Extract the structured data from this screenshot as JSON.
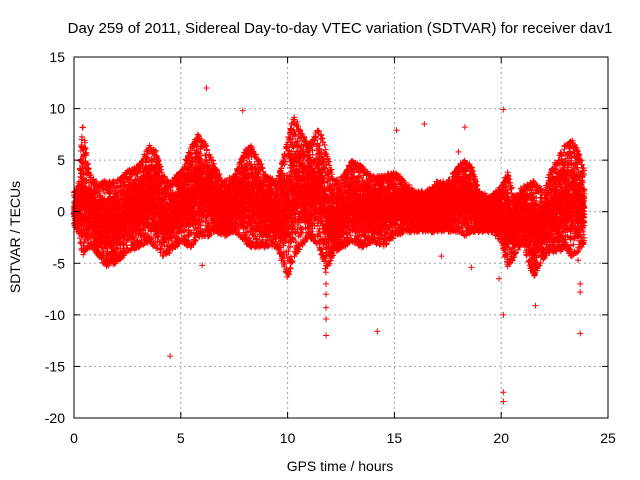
{
  "chart_data": {
    "type": "scatter",
    "title": "Day 259 of 2011, Sidereal Day-to-day VTEC variation (SDTVAR) for receiver dav1",
    "xlabel": "GPS time / hours",
    "ylabel": "SDTVAR / TECUs",
    "xlim": [
      0,
      25
    ],
    "ylim": [
      -20,
      15
    ],
    "xticks": [
      0,
      5,
      10,
      15,
      20,
      25
    ],
    "yticks": [
      -20,
      -15,
      -10,
      -5,
      0,
      5,
      10,
      15
    ],
    "xtick_labels": [
      "0",
      "5",
      "10",
      "15",
      "20",
      "25"
    ],
    "ytick_labels": [
      "-20",
      "-15",
      "-10",
      "-5",
      "0",
      "5",
      "10",
      "15"
    ],
    "grid": true,
    "marker": "+",
    "color": "#ff0000",
    "series": [
      {
        "name": "SDTVAR",
        "envelope": {
          "x": [
            0.0,
            0.2,
            0.3,
            0.4,
            0.5,
            0.7,
            1.0,
            1.5,
            2.0,
            2.5,
            3.0,
            3.5,
            3.8,
            4.2,
            4.5,
            5.0,
            5.5,
            5.8,
            6.2,
            6.6,
            7.0,
            7.5,
            8.0,
            8.3,
            8.7,
            9.0,
            9.5,
            10.0,
            10.3,
            10.6,
            11.0,
            11.5,
            11.8,
            12.2,
            12.6,
            13.0,
            13.5,
            14.0,
            14.5,
            15.0,
            15.5,
            16.0,
            16.5,
            17.0,
            17.5,
            18.0,
            18.3,
            18.6,
            19.0,
            19.5,
            20.0,
            20.3,
            20.6,
            21.0,
            21.5,
            22.0,
            22.3,
            22.7,
            23.0,
            23.3,
            23.6,
            23.9
          ],
          "upper": [
            2.0,
            2.5,
            5.0,
            8.7,
            7.0,
            4.0,
            3.0,
            3.0,
            3.0,
            4.0,
            4.5,
            6.5,
            6.0,
            3.5,
            3.0,
            4.0,
            6.5,
            7.5,
            6.5,
            4.5,
            3.0,
            3.5,
            6.0,
            6.5,
            5.0,
            3.5,
            3.0,
            7.0,
            9.5,
            8.0,
            6.5,
            8.3,
            6.0,
            3.0,
            3.5,
            5.0,
            4.5,
            3.5,
            3.5,
            4.0,
            3.0,
            2.0,
            2.0,
            3.0,
            3.0,
            4.5,
            5.0,
            4.5,
            2.0,
            1.5,
            2.5,
            4.0,
            1.5,
            2.5,
            3.0,
            2.0,
            4.0,
            5.5,
            6.5,
            7.0,
            6.0,
            4.0
          ],
          "lower": [
            -1.5,
            -2.0,
            -3.0,
            -4.5,
            -4.0,
            -3.5,
            -4.0,
            -5.5,
            -5.0,
            -4.0,
            -3.5,
            -3.0,
            -3.5,
            -4.5,
            -4.0,
            -3.0,
            -3.5,
            -2.5,
            -2.5,
            -2.0,
            -2.5,
            -2.0,
            -3.0,
            -3.5,
            -3.5,
            -3.5,
            -3.5,
            -6.5,
            -4.5,
            -3.5,
            -2.5,
            -3.5,
            -6.0,
            -4.0,
            -3.5,
            -3.0,
            -3.5,
            -3.0,
            -3.5,
            -2.5,
            -2.0,
            -2.0,
            -2.0,
            -2.0,
            -2.0,
            -2.0,
            -2.5,
            -2.0,
            -2.0,
            -2.0,
            -3.0,
            -5.5,
            -4.5,
            -3.0,
            -6.5,
            -4.5,
            -4.0,
            -4.0,
            -3.5,
            -4.5,
            -4.0,
            -3.0
          ]
        },
        "outliers": [
          {
            "x": 4.5,
            "y": -14.0
          },
          {
            "x": 6.2,
            "y": 12.0
          },
          {
            "x": 6.0,
            "y": -5.2
          },
          {
            "x": 7.9,
            "y": 9.8
          },
          {
            "x": 11.8,
            "y": -7.0
          },
          {
            "x": 11.8,
            "y": -8.0
          },
          {
            "x": 11.8,
            "y": -9.3
          },
          {
            "x": 11.8,
            "y": -10.4
          },
          {
            "x": 11.8,
            "y": -12.0
          },
          {
            "x": 14.2,
            "y": -11.6
          },
          {
            "x": 15.1,
            "y": 7.9
          },
          {
            "x": 16.4,
            "y": 8.5
          },
          {
            "x": 17.2,
            "y": -4.3
          },
          {
            "x": 18.0,
            "y": 5.8
          },
          {
            "x": 18.3,
            "y": 8.2
          },
          {
            "x": 18.6,
            "y": -5.4
          },
          {
            "x": 19.9,
            "y": -6.5
          },
          {
            "x": 20.1,
            "y": 9.9
          },
          {
            "x": 20.1,
            "y": -10.0
          },
          {
            "x": 20.1,
            "y": -17.5
          },
          {
            "x": 20.1,
            "y": -18.4
          },
          {
            "x": 21.6,
            "y": -9.1
          },
          {
            "x": 23.6,
            "y": -4.7
          },
          {
            "x": 23.7,
            "y": -7.0
          },
          {
            "x": 23.7,
            "y": -7.8
          },
          {
            "x": 23.7,
            "y": -11.8
          }
        ]
      }
    ]
  }
}
